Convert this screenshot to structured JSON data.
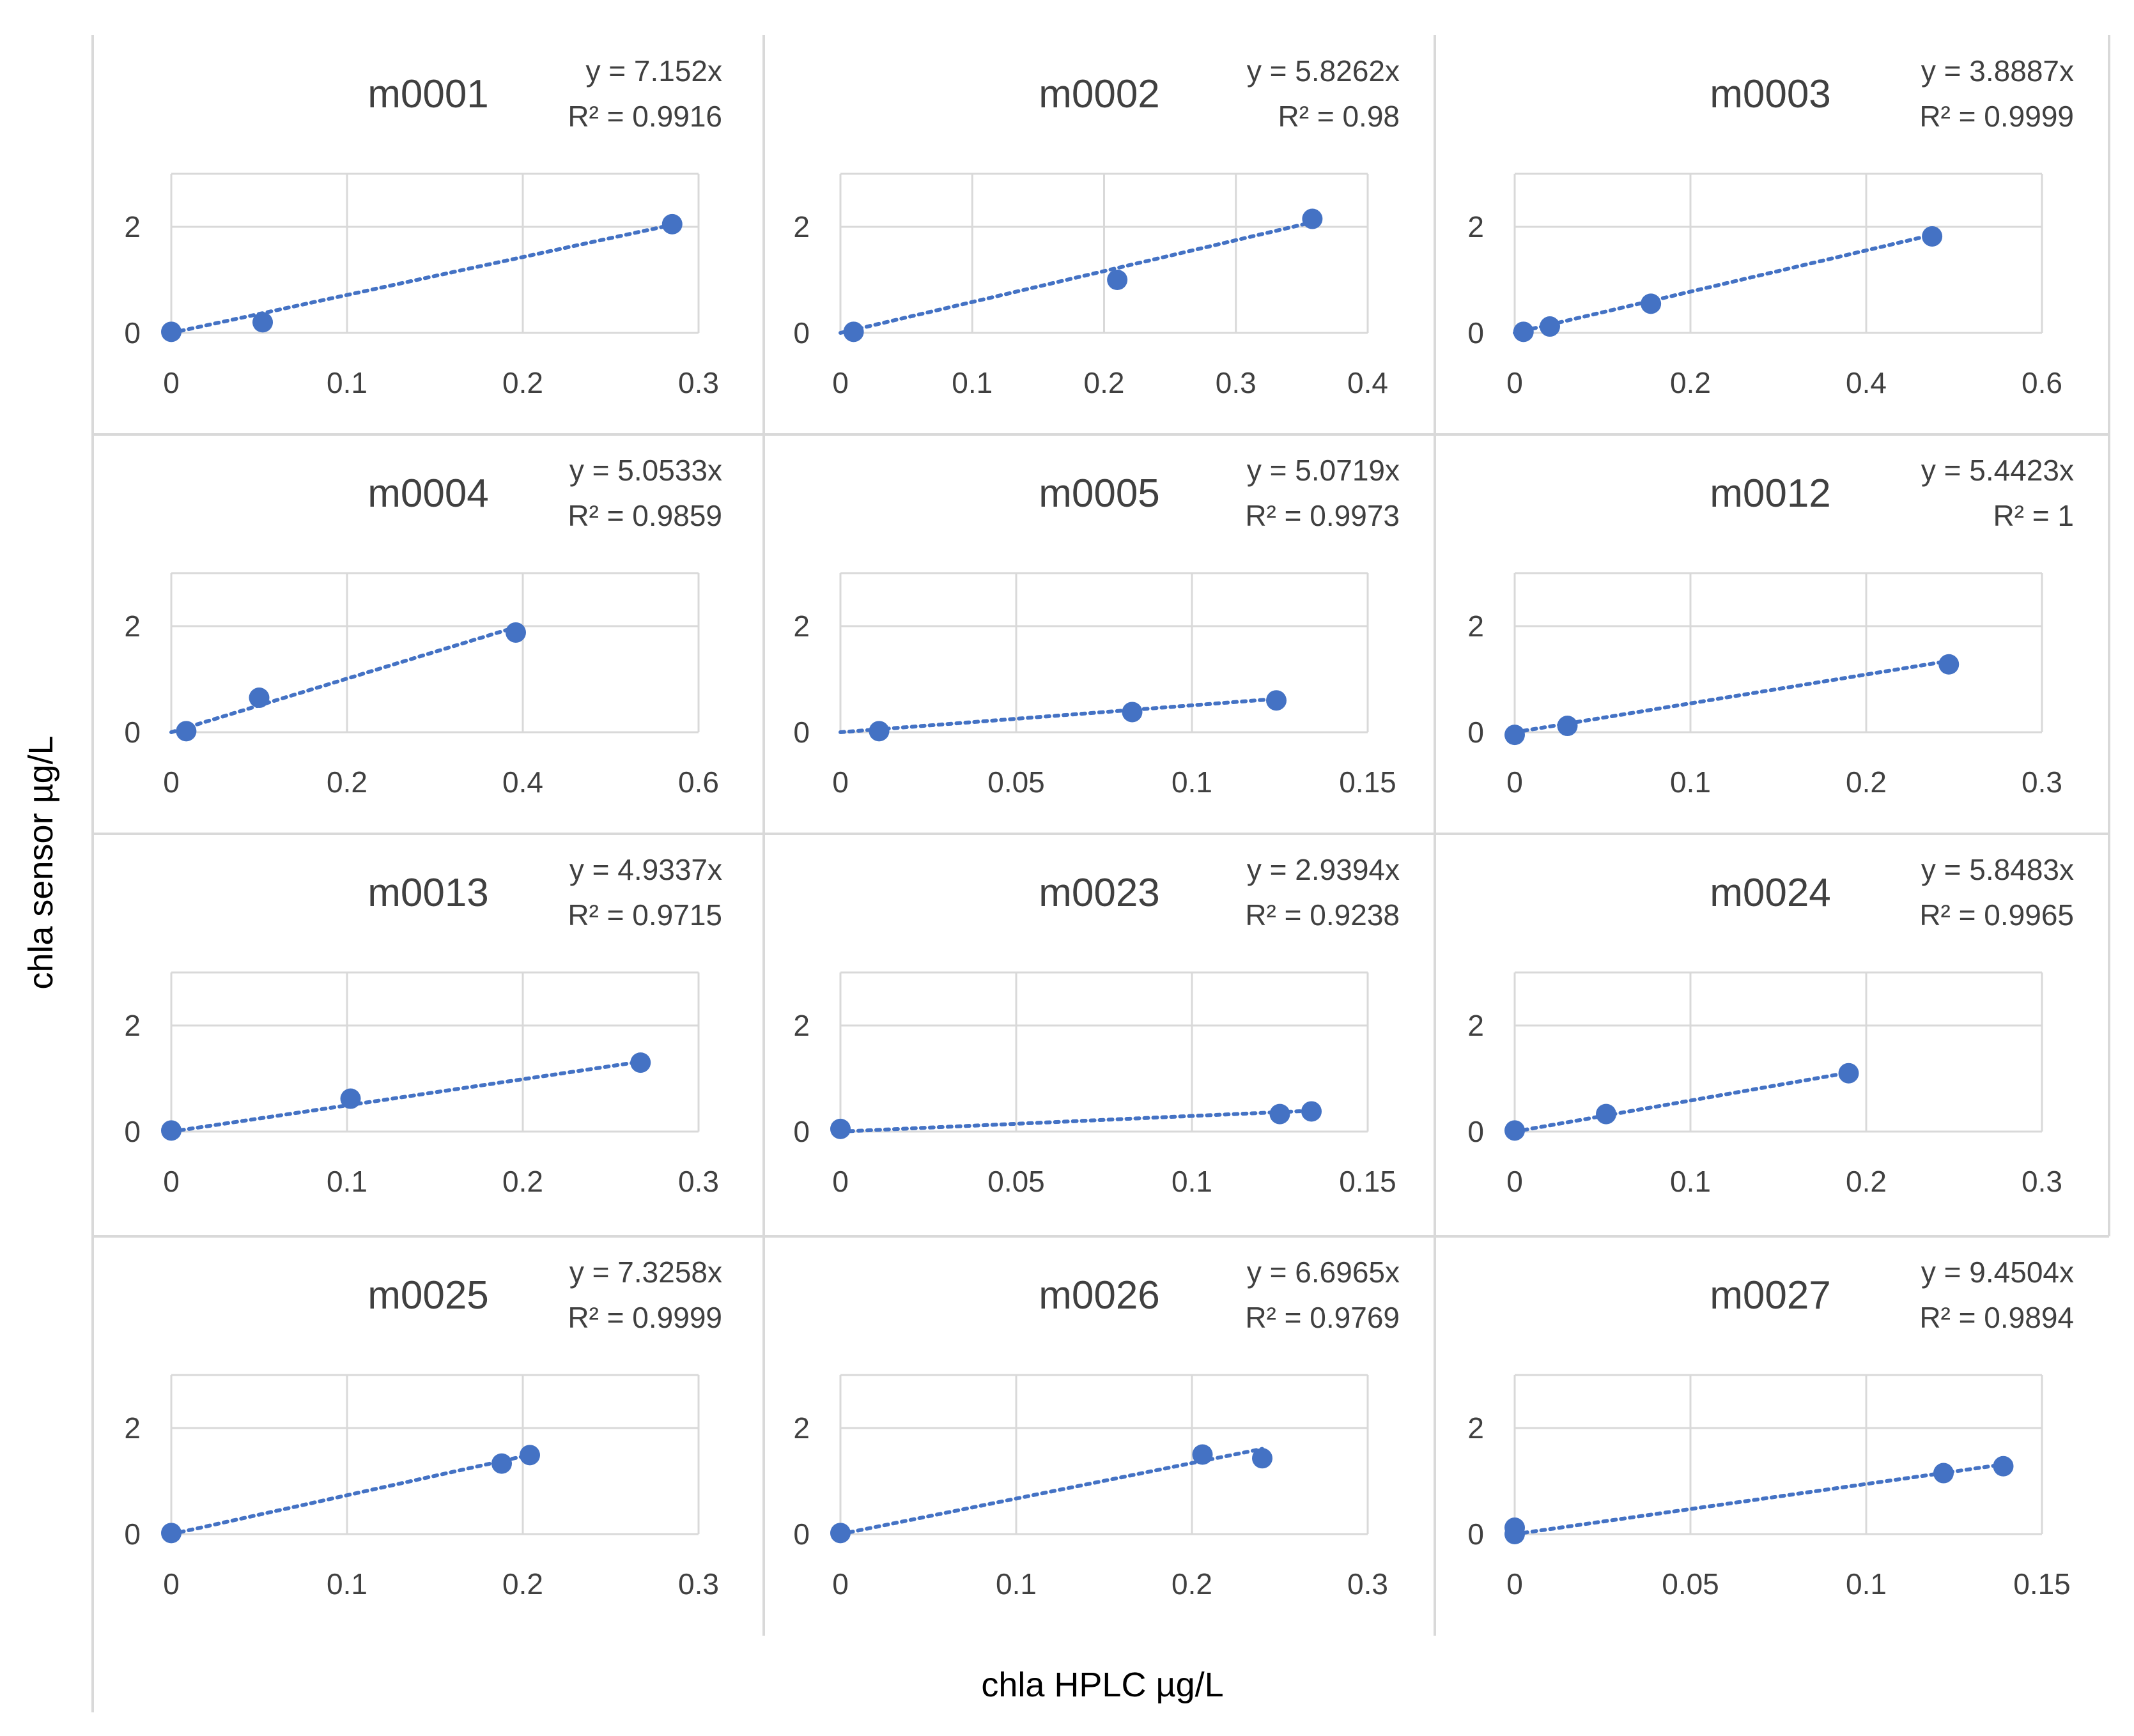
{
  "figure": {
    "ylabel": "chla sensor µg/L",
    "xlabel": "chla HPLC µg/L"
  },
  "colors": {
    "marker": "#4472C4",
    "grid": "#D9D9D9",
    "panel_border": "#D9D9D9",
    "text": "#404040"
  },
  "chart_data": [
    {
      "type": "scatter",
      "title": "m0001",
      "equation": "y = 7.152x",
      "r2": "R² = 0.9916",
      "xlim": [
        0,
        0.3
      ],
      "xticks": [
        0,
        0.1,
        0.2,
        0.3
      ],
      "xtick_labels": [
        "0",
        "0.1",
        "0.2",
        "0.3"
      ],
      "ylim": [
        0,
        3
      ],
      "yticks": [
        0,
        2
      ],
      "ytick_labels": [
        "0",
        "2"
      ],
      "slope": 7.152,
      "x": [
        0,
        0.052,
        0.285
      ],
      "y": [
        0.02,
        0.2,
        2.05
      ]
    },
    {
      "type": "scatter",
      "title": "m0002",
      "equation": "y = 5.8262x",
      "r2": "R² = 0.98",
      "xlim": [
        0,
        0.4
      ],
      "xticks": [
        0,
        0.1,
        0.2,
        0.3,
        0.4
      ],
      "xtick_labels": [
        "0",
        "0.1",
        "0.2",
        "0.3",
        "0.4"
      ],
      "ylim": [
        0,
        3
      ],
      "yticks": [
        0,
        2
      ],
      "ytick_labels": [
        "0",
        "2"
      ],
      "slope": 5.8262,
      "x": [
        0.01,
        0.21,
        0.358
      ],
      "y": [
        0.02,
        1.0,
        2.15
      ]
    },
    {
      "type": "scatter",
      "title": "m0003",
      "equation": "y = 3.8887x",
      "r2": "R² = 0.9999",
      "xlim": [
        0,
        0.6
      ],
      "xticks": [
        0,
        0.2,
        0.4,
        0.6
      ],
      "xtick_labels": [
        "0",
        "0.2",
        "0.4",
        "0.6"
      ],
      "ylim": [
        0,
        3
      ],
      "yticks": [
        0,
        2
      ],
      "ytick_labels": [
        "0",
        "2"
      ],
      "slope": 3.8887,
      "x": [
        0.01,
        0.04,
        0.155,
        0.475
      ],
      "y": [
        0.02,
        0.12,
        0.55,
        1.82
      ]
    },
    {
      "type": "scatter",
      "title": "m0004",
      "equation": "y = 5.0533x",
      "r2": "R² = 0.9859",
      "xlim": [
        0,
        0.6
      ],
      "xticks": [
        0,
        0.2,
        0.4,
        0.6
      ],
      "xtick_labels": [
        "0",
        "0.2",
        "0.4",
        "0.6"
      ],
      "ylim": [
        0,
        3
      ],
      "yticks": [
        0,
        2
      ],
      "ytick_labels": [
        "0",
        "2"
      ],
      "slope": 5.0533,
      "x": [
        0.017,
        0.1,
        0.392
      ],
      "y": [
        0.02,
        0.65,
        1.88
      ]
    },
    {
      "type": "scatter",
      "title": "m0005",
      "equation": "y = 5.0719x",
      "r2": "R² = 0.9973",
      "xlim": [
        0,
        0.15
      ],
      "xticks": [
        0,
        0.05,
        0.1,
        0.15
      ],
      "xtick_labels": [
        "0",
        "0.05",
        "0.1",
        "0.15"
      ],
      "ylim": [
        0,
        3
      ],
      "yticks": [
        0,
        2
      ],
      "ytick_labels": [
        "0",
        "2"
      ],
      "slope": 5.0719,
      "x": [
        0.011,
        0.083,
        0.124
      ],
      "y": [
        0.02,
        0.38,
        0.6
      ]
    },
    {
      "type": "scatter",
      "title": "m0012",
      "equation": "y = 5.4423x",
      "r2": "R² = 1",
      "xlim": [
        0,
        0.3
      ],
      "xticks": [
        0,
        0.1,
        0.2,
        0.3
      ],
      "xtick_labels": [
        "0",
        "0.1",
        "0.2",
        "0.3"
      ],
      "ylim": [
        0,
        3
      ],
      "yticks": [
        0,
        2
      ],
      "ytick_labels": [
        "0",
        "2"
      ],
      "slope": 5.4423,
      "x": [
        0,
        0.03,
        0.247
      ],
      "y": [
        -0.05,
        0.12,
        1.28
      ]
    },
    {
      "type": "scatter",
      "title": "m0013",
      "equation": "y = 4.9337x",
      "r2": "R² = 0.9715",
      "xlim": [
        0,
        0.3
      ],
      "xticks": [
        0,
        0.1,
        0.2,
        0.3
      ],
      "xtick_labels": [
        "0",
        "0.1",
        "0.2",
        "0.3"
      ],
      "ylim": [
        0,
        3
      ],
      "yticks": [
        0,
        2
      ],
      "ytick_labels": [
        "0",
        "2"
      ],
      "slope": 4.9337,
      "x": [
        0,
        0.102,
        0.267
      ],
      "y": [
        0.02,
        0.62,
        1.3
      ]
    },
    {
      "type": "scatter",
      "title": "m0023",
      "equation": "y = 2.9394x",
      "r2": "R² = 0.9238",
      "xlim": [
        0,
        0.15
      ],
      "xticks": [
        0,
        0.05,
        0.1,
        0.15
      ],
      "xtick_labels": [
        "0",
        "0.05",
        "0.1",
        "0.15"
      ],
      "ylim": [
        0,
        3
      ],
      "yticks": [
        0,
        2
      ],
      "ytick_labels": [
        "0",
        "2"
      ],
      "slope": 2.9394,
      "x": [
        0,
        0.125,
        0.134
      ],
      "y": [
        0.05,
        0.33,
        0.38
      ]
    },
    {
      "type": "scatter",
      "title": "m0024",
      "equation": "y = 5.8483x",
      "r2": "R² = 0.9965",
      "xlim": [
        0,
        0.3
      ],
      "xticks": [
        0,
        0.1,
        0.2,
        0.3
      ],
      "xtick_labels": [
        "0",
        "0.1",
        "0.2",
        "0.3"
      ],
      "ylim": [
        0,
        3
      ],
      "yticks": [
        0,
        2
      ],
      "ytick_labels": [
        "0",
        "2"
      ],
      "slope": 5.8483,
      "x": [
        0,
        0.052,
        0.19
      ],
      "y": [
        0.02,
        0.33,
        1.1
      ]
    },
    {
      "type": "scatter",
      "title": "m0025",
      "equation": "y = 7.3258x",
      "r2": "R² = 0.9999",
      "xlim": [
        0,
        0.3
      ],
      "xticks": [
        0,
        0.1,
        0.2,
        0.3
      ],
      "xtick_labels": [
        "0",
        "0.1",
        "0.2",
        "0.3"
      ],
      "ylim": [
        0,
        3
      ],
      "yticks": [
        0,
        2
      ],
      "ytick_labels": [
        "0",
        "2"
      ],
      "slope": 7.3258,
      "x": [
        0,
        0.188,
        0.204
      ],
      "y": [
        0.02,
        1.33,
        1.49
      ]
    },
    {
      "type": "scatter",
      "title": "m0026",
      "equation": "y = 6.6965x",
      "r2": "R² = 0.9769",
      "xlim": [
        0,
        0.3
      ],
      "xticks": [
        0,
        0.1,
        0.2,
        0.3
      ],
      "xtick_labels": [
        "0",
        "0.1",
        "0.2",
        "0.3"
      ],
      "ylim": [
        0,
        3
      ],
      "yticks": [
        0,
        2
      ],
      "ytick_labels": [
        "0",
        "2"
      ],
      "slope": 6.6965,
      "x": [
        0,
        0.206,
        0.24
      ],
      "y": [
        0.02,
        1.5,
        1.43
      ]
    },
    {
      "type": "scatter",
      "title": "m0027",
      "equation": "y = 9.4504x",
      "r2": "R² = 0.9894",
      "xlim": [
        0,
        0.15
      ],
      "xticks": [
        0,
        0.05,
        0.1,
        0.15
      ],
      "xtick_labels": [
        "0",
        "0.05",
        "0.1",
        "0.15"
      ],
      "ylim": [
        0,
        3
      ],
      "yticks": [
        0,
        2
      ],
      "ytick_labels": [
        "0",
        "2"
      ],
      "slope": 9.4504,
      "x": [
        0,
        0,
        0.122,
        0.139
      ],
      "y": [
        0.0,
        0.12,
        1.15,
        1.28
      ]
    }
  ]
}
